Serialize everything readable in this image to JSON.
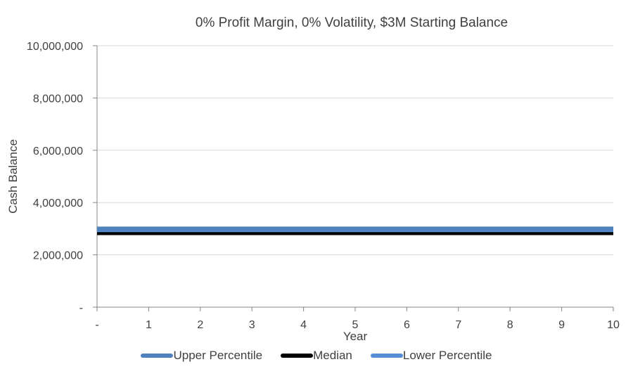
{
  "chart_data": {
    "type": "line",
    "title": "0% Profit Margin, 0% Volatility, $3M Starting Balance",
    "xlabel": "Year",
    "ylabel": "Cash Balance",
    "x": [
      0,
      1,
      2,
      3,
      4,
      5,
      6,
      7,
      8,
      9,
      10
    ],
    "x_tick_labels": [
      "-",
      "1",
      "2",
      "3",
      "4",
      "5",
      "6",
      "7",
      "8",
      "9",
      "10"
    ],
    "y_ticks": [
      0,
      2000000,
      4000000,
      6000000,
      8000000,
      10000000
    ],
    "y_tick_labels": [
      "-",
      "2,000,000",
      "4,000,000",
      "6,000,000",
      "8,000,000",
      "10,000,000"
    ],
    "xlim": [
      0,
      10
    ],
    "ylim": [
      0,
      10000000
    ],
    "grid": true,
    "legend_position": "bottom",
    "series": [
      {
        "name": "Upper Percentile",
        "color": "#4f81bd",
        "values": [
          3000000,
          3000000,
          3000000,
          3000000,
          3000000,
          3000000,
          3000000,
          3000000,
          3000000,
          3000000,
          3000000
        ]
      },
      {
        "name": "Median",
        "color": "#000000",
        "values": [
          2850000,
          2850000,
          2850000,
          2850000,
          2850000,
          2850000,
          2850000,
          2850000,
          2850000,
          2850000,
          2850000
        ]
      },
      {
        "name": "Lower Percentile",
        "color": "#558ed5",
        "values": [
          2950000,
          2950000,
          2950000,
          2950000,
          2950000,
          2950000,
          2950000,
          2950000,
          2950000,
          2950000,
          2950000
        ]
      }
    ]
  }
}
